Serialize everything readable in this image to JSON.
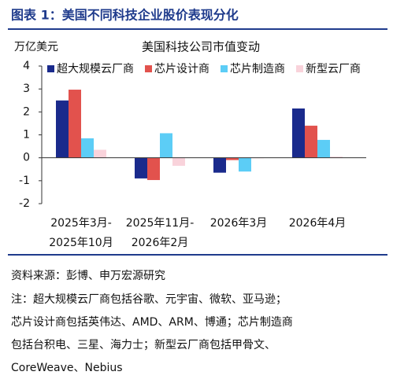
{
  "header": {
    "title": "图表 1：美国不同科技企业股价表现分化"
  },
  "chart_data": {
    "type": "bar",
    "title": "美国科技公司市值变动",
    "y_label": "万亿美元",
    "categories": [
      [
        "2025年3月-",
        "2025年10月"
      ],
      [
        "2025年11月-",
        "2026年2月"
      ],
      [
        "2026年3月"
      ],
      [
        "2026年4月"
      ]
    ],
    "series": [
      {
        "name": "超大规模云厂商",
        "color": "#1a2a8c",
        "values": [
          2.5,
          -0.9,
          -0.65,
          2.15
        ]
      },
      {
        "name": "芯片设计商",
        "color": "#e2524d",
        "values": [
          2.97,
          -0.97,
          -0.1,
          1.4
        ]
      },
      {
        "name": "芯片制造商",
        "color": "#5ccdf6",
        "values": [
          0.85,
          1.07,
          -0.6,
          0.78
        ]
      },
      {
        "name": "新型云厂商",
        "color": "#f9d3db",
        "values": [
          0.35,
          -0.35,
          -0.02,
          0.05
        ]
      }
    ],
    "ylim": [
      -2,
      4
    ],
    "yticks": [
      4,
      3,
      2,
      1,
      0,
      -1,
      -2
    ],
    "legend": "top"
  },
  "footer": {
    "source": "资料来源：彭博、申万宏源研究",
    "notes": [
      "注：超大规模云厂商包括谷歌、元宇宙、微软、亚马逊；",
      "芯片设计商包括英伟达、AMD、ARM、博通；芯片制造商",
      "包括台积电、三星、海力士；新型云厂商包括甲骨文、",
      "CoreWeave、Nebius"
    ]
  }
}
